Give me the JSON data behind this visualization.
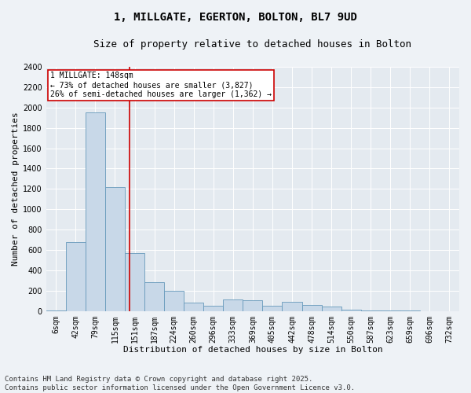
{
  "title": "1, MILLGATE, EGERTON, BOLTON, BL7 9UD",
  "subtitle": "Size of property relative to detached houses in Bolton",
  "xlabel": "Distribution of detached houses by size in Bolton",
  "ylabel": "Number of detached properties",
  "bins": [
    "6sqm",
    "42sqm",
    "79sqm",
    "115sqm",
    "151sqm",
    "187sqm",
    "224sqm",
    "260sqm",
    "296sqm",
    "333sqm",
    "369sqm",
    "405sqm",
    "442sqm",
    "478sqm",
    "514sqm",
    "550sqm",
    "587sqm",
    "623sqm",
    "659sqm",
    "696sqm",
    "732sqm"
  ],
  "values": [
    5,
    680,
    1950,
    1220,
    570,
    280,
    200,
    80,
    50,
    110,
    105,
    50,
    90,
    60,
    45,
    15,
    5,
    3,
    2,
    1,
    1
  ],
  "bar_color": "#c8d8e8",
  "bar_edge_color": "#6699bb",
  "bar_linewidth": 0.6,
  "vline_x": 3.75,
  "vline_color": "#cc0000",
  "annotation_line1": "1 MILLGATE: 148sqm",
  "annotation_line2": "← 73% of detached houses are smaller (3,827)",
  "annotation_line3": "26% of semi-detached houses are larger (1,362) →",
  "annotation_box_color": "#cc0000",
  "annotation_box_facecolor": "white",
  "ylim": [
    0,
    2400
  ],
  "yticks": [
    0,
    200,
    400,
    600,
    800,
    1000,
    1200,
    1400,
    1600,
    1800,
    2000,
    2200,
    2400
  ],
  "footnote": "Contains HM Land Registry data © Crown copyright and database right 2025.\nContains public sector information licensed under the Open Government Licence v3.0.",
  "bg_color": "#eef2f6",
  "plot_bg_color": "#e4eaf0",
  "grid_color": "#ffffff",
  "title_fontsize": 10,
  "subtitle_fontsize": 9,
  "axis_label_fontsize": 8,
  "tick_fontsize": 7,
  "annotation_fontsize": 7,
  "footnote_fontsize": 6.5
}
